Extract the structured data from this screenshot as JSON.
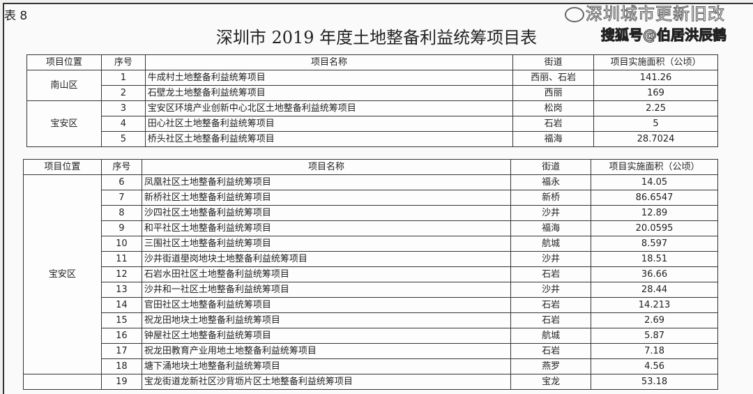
{
  "label": "表 8",
  "title": "深圳市 2019 年度土地整备利益统筹项目表",
  "headers": [
    "项目位置",
    "序号",
    "项目名称",
    "街道",
    "项目实施面积（公顷）"
  ],
  "table1": {
    "groups": [
      {
        "district": "南山区",
        "rows": [
          [
            "1",
            "牛成村土地整备利益统筹项目",
            "西丽、石岩",
            "141.26"
          ],
          [
            "2",
            "石壁龙土地整备利益统筹项目",
            "西丽",
            "169"
          ]
        ]
      },
      {
        "district": "宝安区",
        "rows": [
          [
            "3",
            "宝安区环境产业创新中心北区土地整备利益统筹项目",
            "松岗",
            "2.25"
          ],
          [
            "4",
            "田心社区土地整备利益统筹项目",
            "石岩",
            "5"
          ],
          [
            "5",
            "桥头社区土地整备利益统筹项目",
            "福海",
            "28.7024"
          ]
        ]
      }
    ]
  },
  "table2": {
    "groups": [
      {
        "district": "宝安区",
        "rows": [
          [
            "6",
            "凤凰社区土地整备利益统筹项目",
            "福永",
            "14.05"
          ],
          [
            "7",
            "新桥社区土地整备利益统筹项目",
            "新桥",
            "86.6547"
          ],
          [
            "8",
            "沙四社区土地整备利益统筹项目",
            "沙井",
            "12.89"
          ],
          [
            "9",
            "和平社区土地整备利益统筹项目",
            "福海",
            "20.0595"
          ],
          [
            "10",
            "三围社区土地整备利益统筹项目",
            "航城",
            "8.597"
          ],
          [
            "11",
            "沙井街道壆岗地块土地整备利益统筹项目",
            "沙井",
            "18.51"
          ],
          [
            "12",
            "石岩水田社区土地整备利益统筹项目",
            "石岩",
            "36.66"
          ],
          [
            "13",
            "沙井和一社区土地整备利益统筹项目",
            "沙井",
            "28.44"
          ],
          [
            "14",
            "官田社区土地整备利益统筹项目",
            "石岩",
            "14.213"
          ],
          [
            "15",
            "祝龙田地块土地整备利益统筹项目",
            "石岩",
            "2.69"
          ],
          [
            "16",
            "钟屋社区土地整备利益统筹项目",
            "航城",
            "5.87"
          ],
          [
            "17",
            "祝龙田教育产业用地土地整备利益统筹项目",
            "石岩",
            "7.18"
          ],
          [
            "18",
            "塘下涌地块土地整备利益统筹项目",
            "燕罗",
            "4.56"
          ]
        ]
      },
      {
        "district": "",
        "rows": [
          [
            "19",
            "宝龙街道龙新社区沙背坜片区土地整备利益统筹项目",
            "宝龙",
            "53.18"
          ]
        ]
      }
    ]
  },
  "watermark": {
    "line1": "深圳城市更新旧改",
    "line2": "搜狐号@伯居洪辰鹤",
    "icon": "wechat-icon"
  }
}
